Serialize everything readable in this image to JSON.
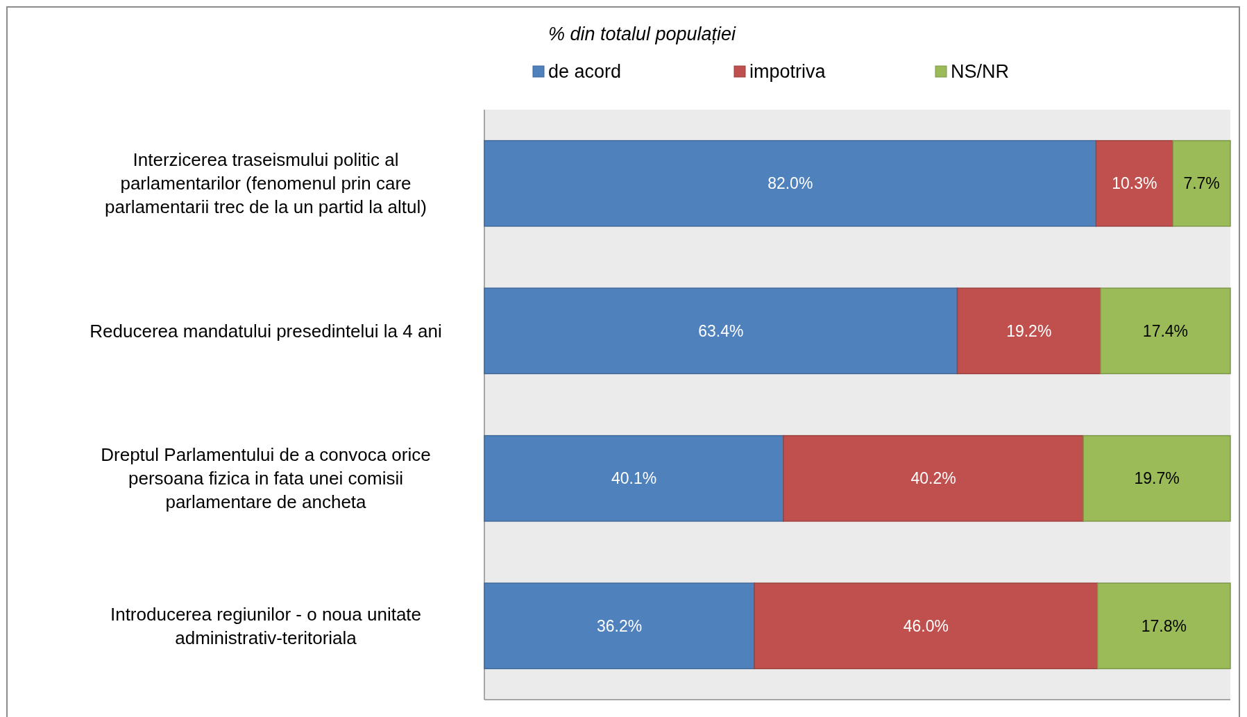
{
  "chart_data": {
    "type": "bar",
    "orientation": "horizontal",
    "stacked": true,
    "title": "% din totalul populației",
    "categories": [
      "Interzicerea traseismului politic al parlamentarilor (fenomenul prin care parlamentarii trec de la un partid la altul)",
      "Reducerea mandatului presedintelui la 4 ani",
      "Dreptul Parlamentului de a convoca orice persoana fizica in fata unei comisii parlamentare de ancheta",
      "Introducerea regiunilor - o noua unitate administrativ-teritoriala"
    ],
    "series": [
      {
        "name": "de acord",
        "color": "#4f81bd",
        "values": [
          82.0,
          63.4,
          40.1,
          36.2
        ],
        "value_labels": [
          "82.0%",
          "63.4%",
          "40.1%",
          "36.2%"
        ]
      },
      {
        "name": "impotriva",
        "color": "#c0504d",
        "values": [
          10.3,
          19.2,
          40.2,
          46.0
        ],
        "value_labels": [
          "10.3%",
          "19.2%",
          "40.2%",
          "46.0%"
        ]
      },
      {
        "name": "NS/NR",
        "color": "#9bbb59",
        "values": [
          7.7,
          17.4,
          19.7,
          17.8
        ],
        "value_labels": [
          "7.7%",
          "17.4%",
          "19.7%",
          "17.8%"
        ]
      }
    ],
    "legend": "top",
    "tick_labels": "y"
  }
}
